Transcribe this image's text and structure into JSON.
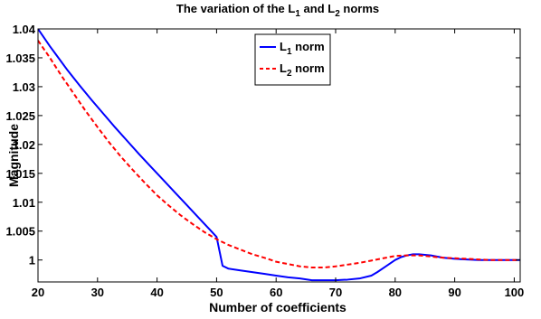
{
  "chart_data": {
    "type": "line",
    "title": {
      "prefix": "The variation of the L",
      "sub1": "1",
      "middle": " and L",
      "sub2": "2",
      "suffix": " norms"
    },
    "xlabel": "Number of coefficients",
    "ylabel": "Magnitude",
    "xlim": [
      20,
      101
    ],
    "ylim": [
      0.9962,
      1.04
    ],
    "xticks": [
      20,
      30,
      40,
      50,
      60,
      70,
      80,
      90,
      100
    ],
    "xtick_labels": [
      "20",
      "30",
      "40",
      "50",
      "60",
      "70",
      "80",
      "90",
      "100"
    ],
    "yticks": [
      1.0,
      1.005,
      1.01,
      1.015,
      1.02,
      1.025,
      1.03,
      1.035,
      1.04
    ],
    "ytick_labels": [
      "1",
      "1.005",
      "1.01",
      "1.015",
      "1.02",
      "1.025",
      "1.03",
      "1.035",
      "1.04"
    ],
    "grid": false,
    "legend_position": "top-center",
    "series": [
      {
        "name_main": "L",
        "name_sub": "1",
        "name_tail": " norm",
        "color": "#0000ff",
        "style": "solid",
        "x": [
          20,
          21,
          22,
          23,
          25,
          27,
          29,
          31,
          33,
          35,
          37,
          39,
          41,
          43,
          45,
          47,
          49,
          50,
          51,
          52,
          54,
          56,
          58,
          60,
          62,
          64,
          66,
          68,
          70,
          72,
          74,
          76,
          77,
          78,
          79,
          80,
          81,
          82,
          83,
          84,
          85,
          86,
          87,
          88,
          90,
          92,
          94,
          96,
          98,
          100,
          101
        ],
        "y": [
          1.04,
          1.0385,
          1.037,
          1.0356,
          1.0328,
          1.0302,
          1.0277,
          1.0253,
          1.0229,
          1.0206,
          1.0183,
          1.0161,
          1.0139,
          1.0117,
          1.0095,
          1.0073,
          1.0051,
          1.004,
          0.999,
          0.9985,
          0.9982,
          0.9979,
          0.9976,
          0.9973,
          0.997,
          0.9968,
          0.9965,
          0.9965,
          0.9965,
          0.9966,
          0.9968,
          0.9973,
          0.9979,
          0.9986,
          0.9993,
          1.0,
          1.0005,
          1.0008,
          1.001,
          1.001,
          1.0009,
          1.0008,
          1.0006,
          1.0004,
          1.0002,
          1.0001,
          1.0,
          1.0,
          1.0,
          1.0,
          1.0
        ]
      },
      {
        "name_main": "L",
        "name_sub": "2",
        "name_tail": " norm",
        "color": "#ff0000",
        "style": "dashed",
        "x": [
          20,
          22,
          24,
          26,
          28,
          30,
          32,
          34,
          36,
          38,
          40,
          42,
          44,
          46,
          48,
          50,
          52,
          54,
          56,
          58,
          60,
          62,
          64,
          66,
          68,
          70,
          72,
          74,
          76,
          78,
          80,
          82,
          84,
          86,
          88,
          90,
          92,
          94,
          96,
          98,
          100,
          101
        ],
        "y": [
          1.038,
          1.035,
          1.0318,
          1.0288,
          1.0258,
          1.023,
          1.0203,
          1.0178,
          1.0155,
          1.0133,
          1.0112,
          1.0094,
          1.0077,
          1.0062,
          1.0048,
          1.0036,
          1.0026,
          1.0018,
          1.001,
          1.0004,
          0.9997,
          0.9993,
          0.9989,
          0.9987,
          0.9987,
          0.9989,
          0.9992,
          0.9995,
          0.9999,
          1.0003,
          1.0007,
          1.0008,
          1.0008,
          1.0006,
          1.0004,
          1.0003,
          1.0002,
          1.0001,
          1.0,
          1.0,
          1.0,
          1.0
        ]
      }
    ]
  }
}
